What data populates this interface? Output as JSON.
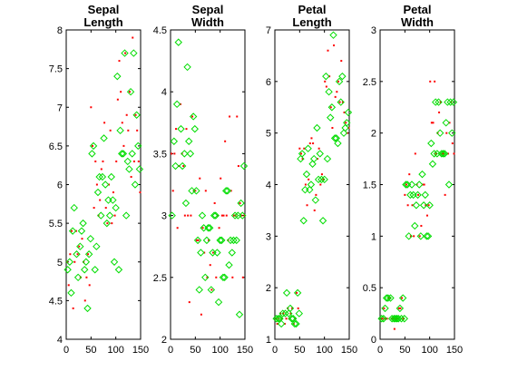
{
  "chart_data": [
    {
      "type": "scatter",
      "title_lines": [
        "Sepal",
        "Length"
      ],
      "xlim": [
        0,
        150
      ],
      "ylim": [
        4,
        8
      ],
      "xticks": [
        0,
        50,
        100,
        150
      ],
      "yticks": [
        4,
        4.5,
        5,
        5.5,
        6,
        6.5,
        7,
        7.5,
        8
      ],
      "series": [
        {
          "color": "#ff0000",
          "marker": "dot",
          "x": [
            2,
            5,
            8,
            11,
            14,
            17,
            20,
            23,
            26,
            29,
            32,
            35,
            38,
            41,
            44,
            47,
            50,
            53,
            56,
            59,
            62,
            65,
            68,
            71,
            74,
            77,
            80,
            83,
            86,
            89,
            92,
            95,
            98,
            101,
            104,
            107,
            110,
            113,
            116,
            119,
            122,
            125,
            128,
            131,
            134,
            137,
            140,
            143,
            146,
            149
          ],
          "y": [
            5.0,
            4.7,
            5.1,
            5.4,
            4.4,
            5.0,
            5.4,
            5.1,
            5.2,
            4.8,
            5.3,
            5.0,
            4.5,
            4.8,
            5.1,
            4.7,
            7.0,
            6.5,
            5.7,
            6.3,
            6.0,
            5.6,
            5.8,
            6.2,
            6.3,
            6.8,
            5.7,
            5.5,
            6.0,
            6.7,
            5.5,
            5.9,
            5.6,
            6.3,
            7.1,
            7.6,
            7.2,
            6.8,
            6.5,
            7.7,
            6.9,
            6.7,
            7.2,
            6.1,
            7.9,
            6.3,
            6.9,
            6.7,
            6.3,
            5.9
          ]
        },
        {
          "color": "#00dd00",
          "marker": "diamond",
          "x": [
            3,
            7,
            10,
            13,
            16,
            21,
            24,
            28,
            31,
            34,
            37,
            40,
            43,
            46,
            49,
            52,
            55,
            58,
            61,
            64,
            67,
            70,
            73,
            76,
            79,
            82,
            85,
            88,
            91,
            94,
            97,
            100,
            103,
            106,
            109,
            112,
            115,
            118,
            121,
            124,
            127,
            130,
            133,
            136,
            139,
            142,
            145,
            148
          ],
          "y": [
            4.9,
            5.0,
            4.6,
            5.4,
            5.7,
            5.1,
            4.8,
            5.2,
            5.4,
            5.5,
            4.9,
            5.0,
            4.4,
            5.1,
            5.3,
            6.4,
            6.5,
            4.9,
            5.2,
            5.9,
            6.1,
            5.6,
            6.1,
            6.6,
            6.0,
            5.5,
            5.8,
            5.6,
            6.1,
            5.8,
            5.0,
            5.7,
            7.4,
            4.9,
            6.7,
            6.4,
            6.4,
            7.7,
            5.6,
            6.3,
            6.2,
            7.2,
            6.4,
            7.7,
            6.0,
            6.9,
            6.5,
            6.2
          ]
        }
      ]
    },
    {
      "type": "scatter",
      "title_lines": [
        "Sepal",
        "Width"
      ],
      "xlim": [
        0,
        150
      ],
      "ylim": [
        2,
        4.5
      ],
      "xticks": [
        0,
        50,
        100,
        150
      ],
      "yticks": [
        2,
        2.5,
        3,
        3.5,
        4,
        4.5
      ],
      "series": [
        {
          "color": "#ff0000",
          "marker": "dot",
          "x": [
            2,
            5,
            8,
            11,
            14,
            17,
            20,
            23,
            26,
            29,
            32,
            35,
            38,
            41,
            44,
            47,
            50,
            53,
            56,
            59,
            62,
            65,
            68,
            71,
            74,
            77,
            80,
            83,
            86,
            89,
            92,
            95,
            98,
            101,
            104,
            107,
            110,
            113,
            116,
            119,
            122,
            125,
            128,
            131,
            134,
            137,
            140,
            143,
            146,
            149
          ],
          "y": [
            3.5,
            3.2,
            3.5,
            3.7,
            2.9,
            3.4,
            3.9,
            3.5,
            3.4,
            3.0,
            3.7,
            3.0,
            2.3,
            3.0,
            3.8,
            3.2,
            3.2,
            2.8,
            2.8,
            3.3,
            2.2,
            2.9,
            2.7,
            3.2,
            2.5,
            2.8,
            2.6,
            2.4,
            2.7,
            3.1,
            2.5,
            3.0,
            2.9,
            3.3,
            3.0,
            3.0,
            3.6,
            3.0,
            2.8,
            3.8,
            3.2,
            2.5,
            3.0,
            3.0,
            3.8,
            3.4,
            3.1,
            3.0,
            2.5,
            3.0
          ]
        },
        {
          "color": "#00dd00",
          "marker": "diamond",
          "x": [
            3,
            7,
            10,
            13,
            16,
            21,
            24,
            28,
            31,
            34,
            37,
            40,
            43,
            46,
            49,
            52,
            55,
            58,
            61,
            64,
            67,
            70,
            73,
            76,
            79,
            82,
            85,
            88,
            91,
            94,
            97,
            100,
            103,
            106,
            109,
            112,
            115,
            118,
            121,
            124,
            127,
            130,
            133,
            136,
            139,
            142,
            145,
            148
          ],
          "y": [
            3.0,
            3.6,
            3.4,
            3.9,
            4.4,
            3.7,
            3.4,
            3.5,
            3.1,
            4.2,
            3.6,
            3.5,
            3.2,
            3.8,
            3.7,
            3.2,
            2.8,
            2.4,
            2.7,
            3.0,
            2.9,
            2.5,
            2.8,
            2.9,
            2.9,
            2.4,
            2.7,
            3.0,
            3.0,
            2.7,
            2.3,
            2.8,
            2.8,
            2.5,
            2.5,
            3.2,
            3.2,
            2.6,
            2.8,
            2.7,
            2.8,
            3.0,
            2.8,
            3.0,
            2.2,
            3.1,
            3.0,
            3.4
          ]
        }
      ]
    },
    {
      "type": "scatter",
      "title_lines": [
        "Petal",
        "Length"
      ],
      "xlim": [
        0,
        150
      ],
      "ylim": [
        1,
        7
      ],
      "xticks": [
        0,
        50,
        100,
        150
      ],
      "yticks": [
        1,
        2,
        3,
        4,
        5,
        6,
        7
      ],
      "series": [
        {
          "color": "#ff0000",
          "marker": "dot",
          "x": [
            2,
            5,
            8,
            11,
            14,
            17,
            20,
            23,
            26,
            29,
            32,
            35,
            38,
            41,
            44,
            47,
            50,
            53,
            56,
            59,
            62,
            65,
            68,
            71,
            74,
            77,
            80,
            83,
            86,
            89,
            92,
            95,
            98,
            101,
            104,
            107,
            110,
            113,
            116,
            119,
            122,
            125,
            128,
            131,
            134,
            137,
            140,
            143,
            146,
            149
          ],
          "y": [
            1.4,
            1.3,
            1.4,
            1.5,
            1.4,
            1.5,
            1.3,
            1.4,
            1.6,
            1.4,
            1.5,
            1.6,
            1.3,
            1.4,
            1.9,
            1.6,
            4.7,
            4.6,
            4.5,
            4.7,
            4.0,
            3.6,
            4.1,
            4.8,
            4.9,
            4.8,
            3.5,
            3.8,
            4.5,
            4.7,
            4.0,
            4.2,
            4.1,
            6.0,
            5.9,
            6.6,
            6.1,
            5.5,
            5.1,
            6.7,
            5.7,
            5.8,
            6.0,
            5.6,
            6.4,
            5.6,
            5.4,
            5.2,
            5.0,
            5.1
          ]
        },
        {
          "color": "#00dd00",
          "marker": "diamond",
          "x": [
            3,
            7,
            10,
            13,
            16,
            21,
            24,
            28,
            31,
            34,
            37,
            40,
            43,
            46,
            49,
            52,
            55,
            58,
            61,
            64,
            67,
            70,
            73,
            76,
            79,
            82,
            85,
            88,
            91,
            94,
            97,
            100,
            103,
            106,
            109,
            112,
            115,
            118,
            121,
            124,
            127,
            130,
            133,
            136,
            139,
            142,
            145,
            148
          ],
          "y": [
            1.4,
            1.4,
            1.4,
            1.3,
            1.5,
            1.5,
            1.9,
            1.5,
            1.6,
            1.4,
            1.4,
            1.3,
            1.3,
            1.9,
            1.5,
            4.5,
            4.6,
            3.3,
            3.9,
            4.2,
            4.7,
            3.9,
            4.0,
            4.4,
            4.5,
            3.7,
            5.1,
            4.1,
            4.6,
            4.1,
            3.3,
            4.1,
            6.1,
            4.5,
            5.8,
            5.3,
            5.5,
            6.9,
            4.9,
            4.9,
            4.8,
            6.0,
            5.6,
            6.1,
            5.0,
            5.1,
            5.2,
            5.4
          ]
        }
      ]
    },
    {
      "type": "scatter",
      "title_lines": [
        "Petal",
        "Width"
      ],
      "xlim": [
        0,
        150
      ],
      "ylim": [
        0,
        3
      ],
      "xticks": [
        0,
        50,
        100,
        150
      ],
      "yticks": [
        0,
        0.5,
        1,
        1.5,
        2,
        2.5,
        3
      ],
      "series": [
        {
          "color": "#ff0000",
          "marker": "dot",
          "x": [
            2,
            5,
            8,
            11,
            14,
            17,
            20,
            23,
            26,
            29,
            32,
            35,
            38,
            41,
            44,
            47,
            50,
            53,
            56,
            59,
            62,
            65,
            68,
            71,
            74,
            77,
            80,
            83,
            86,
            89,
            92,
            95,
            98,
            101,
            104,
            107,
            110,
            113,
            116,
            119,
            122,
            125,
            128,
            131,
            134,
            137,
            140,
            143,
            146,
            149
          ],
          "y": [
            0.2,
            0.2,
            0.3,
            0.2,
            0.2,
            0.4,
            0.4,
            0.2,
            0.2,
            0.1,
            0.2,
            0.2,
            0.3,
            0.3,
            0.4,
            0.2,
            1.4,
            1.5,
            1.3,
            1.6,
            1.0,
            1.3,
            1.0,
            1.8,
            1.5,
            1.4,
            1.0,
            1.1,
            1.5,
            1.5,
            1.3,
            1.2,
            1.3,
            2.5,
            2.1,
            2.1,
            2.5,
            1.8,
            2.0,
            2.2,
            2.3,
            1.8,
            1.8,
            1.4,
            2.0,
            1.8,
            2.1,
            2.3,
            1.9,
            1.8
          ]
        },
        {
          "color": "#00dd00",
          "marker": "diamond",
          "x": [
            3,
            7,
            10,
            13,
            16,
            21,
            24,
            28,
            31,
            34,
            37,
            40,
            43,
            46,
            49,
            52,
            55,
            58,
            61,
            64,
            67,
            70,
            73,
            76,
            79,
            82,
            85,
            88,
            91,
            94,
            97,
            100,
            103,
            106,
            109,
            112,
            115,
            118,
            121,
            124,
            127,
            130,
            133,
            136,
            139,
            142,
            145,
            148
          ],
          "y": [
            0.2,
            0.2,
            0.3,
            0.4,
            0.4,
            0.4,
            0.2,
            0.2,
            0.2,
            0.2,
            0.2,
            0.3,
            0.2,
            0.4,
            0.2,
            1.5,
            1.5,
            1.0,
            1.4,
            1.5,
            1.4,
            1.1,
            1.3,
            1.4,
            1.5,
            1.0,
            1.6,
            1.3,
            1.4,
            1.0,
            1.0,
            1.3,
            1.9,
            1.7,
            1.8,
            2.3,
            1.8,
            2.3,
            2.0,
            1.8,
            1.8,
            1.8,
            2.1,
            2.3,
            1.5,
            2.3,
            2.0,
            2.3
          ]
        }
      ]
    }
  ]
}
